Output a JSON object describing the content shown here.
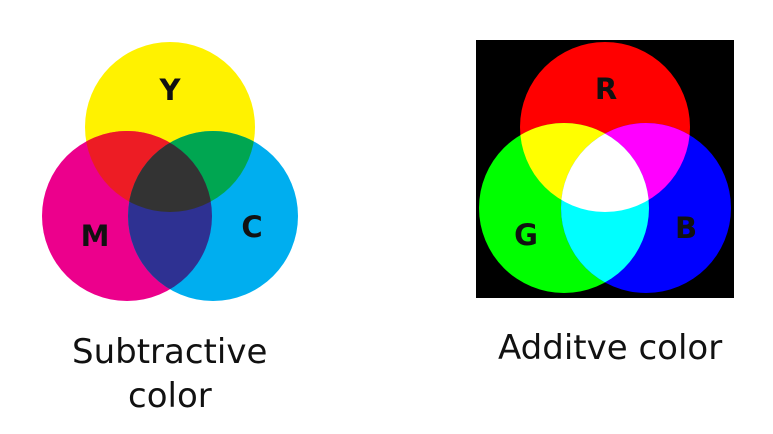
{
  "subtractive": {
    "labels": {
      "y": "Y",
      "m": "M",
      "c": "C"
    },
    "caption_line1": "Subtractive",
    "caption_line2": "color",
    "colors": {
      "yellow": "#fff200",
      "magenta": "#ec008c",
      "cyan": "#00aeef",
      "red_overlap": "#ed1c24",
      "green_overlap": "#00a651",
      "blue_overlap": "#2e3192",
      "center": "#333333"
    }
  },
  "additive": {
    "labels": {
      "r": "R",
      "g": "G",
      "b": "B"
    },
    "caption": "Additve color",
    "colors": {
      "background": "#000000",
      "red": "#ff0000",
      "green": "#00ff00",
      "blue": "#0000ff",
      "yellow_overlap": "#ffff00",
      "magenta_overlap": "#ff00ff",
      "cyan_overlap": "#00ffff",
      "center": "#ffffff"
    }
  }
}
